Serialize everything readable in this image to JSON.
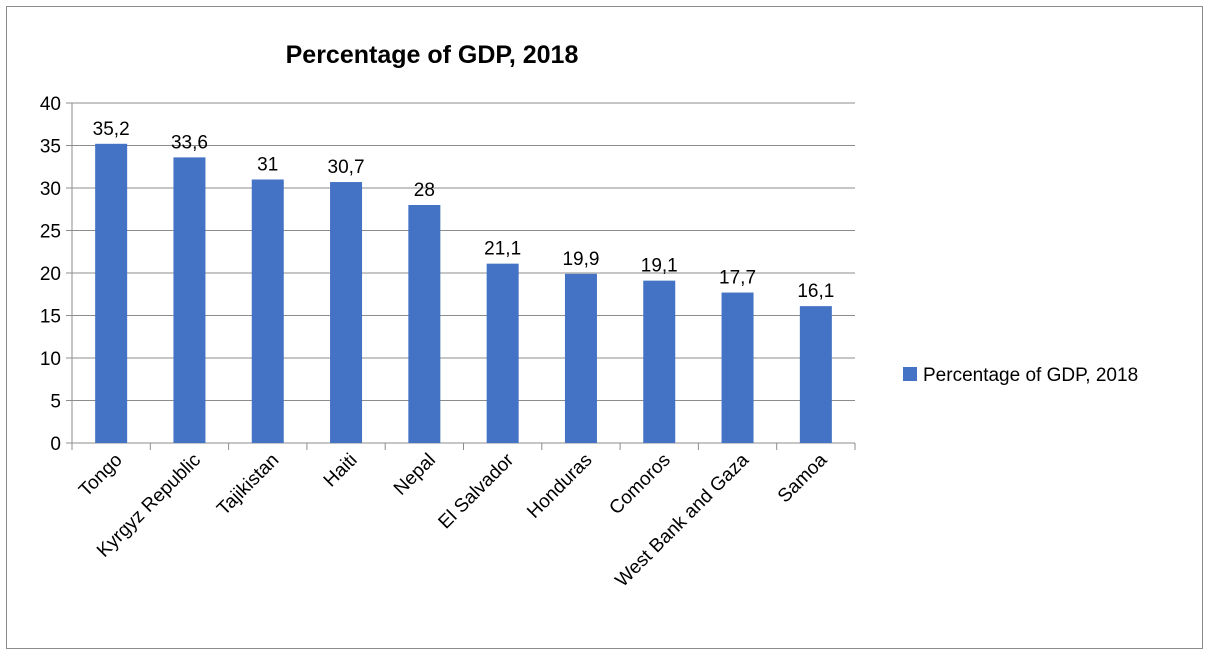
{
  "chart_data": {
    "type": "bar",
    "title": "Percentage of GDP, 2018",
    "xlabel": "",
    "ylabel": "",
    "categories": [
      "Tongo",
      "Kyrgyz Republic",
      "Tajikistan",
      "Haiti",
      "Nepal",
      "El Salvador",
      "Honduras",
      "Comoros",
      "West Bank and Gaza",
      "Samoa"
    ],
    "series": [
      {
        "name": "Percentage of GDP, 2018",
        "values": [
          35.2,
          33.6,
          31,
          30.7,
          28,
          21.1,
          19.9,
          19.1,
          17.7,
          16.1
        ],
        "labels": [
          "35,2",
          "33,6",
          "31",
          "30,7",
          "28",
          "21,1",
          "19,9",
          "19,1",
          "17,7",
          "16,1"
        ],
        "color": "#4472c4"
      }
    ],
    "ylim": [
      0,
      40
    ],
    "yticks": [
      "0",
      "5",
      "10",
      "15",
      "20",
      "25",
      "30",
      "35",
      "40"
    ],
    "grid": true,
    "legend_position": "right"
  }
}
